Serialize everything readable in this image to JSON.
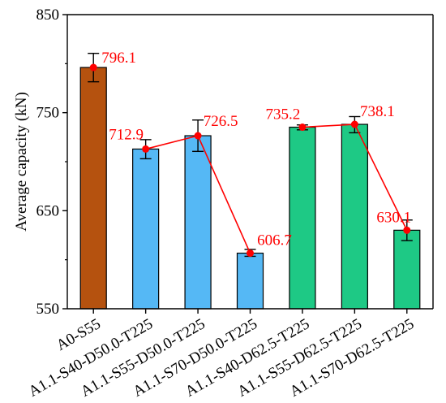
{
  "chart_data": {
    "type": "bar",
    "ylabel": "Average capacity (kN)",
    "xlabel": "",
    "ylim": [
      550,
      850
    ],
    "yticks": [
      550,
      650,
      750,
      850
    ],
    "grid": false,
    "categories": [
      "A0-S55",
      "A1.1-S40-D50.0-T225",
      "A1.1-S55-D50.0-T225",
      "A1.1-S70-D50.0-T225",
      "A1.1-S40-D62.5-T225",
      "A1.1-S55-D62.5-T225",
      "A1.1-S70-D62.5-T225"
    ],
    "values": [
      796.1,
      712.9,
      726.5,
      606.7,
      735.2,
      738.1,
      630.1
    ],
    "error_low": [
      781.5,
      703.0,
      710.5,
      603.5,
      732.5,
      729.5,
      619.5
    ],
    "error_high": [
      810.5,
      722.5,
      742.5,
      610.5,
      737.5,
      746.0,
      640.5
    ],
    "data_labels": [
      "796.1",
      "712.9",
      "726.5",
      "606.7",
      "735.2",
      "738.1",
      "630.1"
    ],
    "bar_colors": [
      "#b5520f",
      "#55b8f5",
      "#55b8f5",
      "#55b8f5",
      "#1ec985",
      "#1ec985",
      "#1ec985"
    ],
    "line_groups": [
      [
        0
      ],
      [
        1,
        2,
        3
      ],
      [
        4,
        5,
        6
      ]
    ],
    "line_color": "#ff0000"
  }
}
